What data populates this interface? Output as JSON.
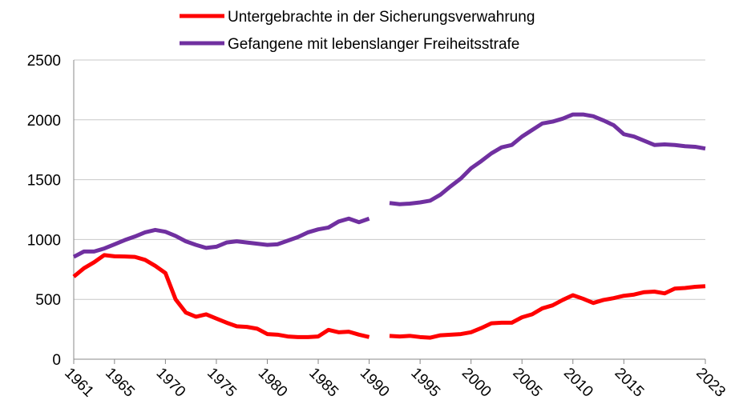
{
  "chart_data": {
    "type": "line",
    "x": [
      1961,
      1962,
      1963,
      1964,
      1965,
      1966,
      1967,
      1968,
      1969,
      1970,
      1971,
      1972,
      1973,
      1974,
      1975,
      1976,
      1977,
      1978,
      1979,
      1980,
      1981,
      1982,
      1983,
      1984,
      1985,
      1986,
      1987,
      1988,
      1989,
      1990,
      1991,
      1992,
      1993,
      1994,
      1995,
      1996,
      1997,
      1998,
      1999,
      2000,
      2001,
      2002,
      2003,
      2004,
      2005,
      2006,
      2007,
      2008,
      2009,
      2010,
      2011,
      2012,
      2013,
      2014,
      2015,
      2016,
      2017,
      2018,
      2019,
      2020,
      2021,
      2022,
      2023
    ],
    "series": [
      {
        "name": "Untergebrachte in der Sicherungsverwahrung",
        "color": "#ff0000",
        "values": [
          690,
          760,
          810,
          870,
          860,
          858,
          855,
          830,
          780,
          720,
          500,
          390,
          355,
          375,
          340,
          305,
          275,
          270,
          255,
          210,
          205,
          190,
          185,
          185,
          190,
          245,
          225,
          230,
          205,
          185,
          null,
          195,
          190,
          195,
          185,
          180,
          200,
          205,
          210,
          225,
          260,
          300,
          305,
          305,
          350,
          375,
          425,
          450,
          495,
          535,
          505,
          470,
          495,
          510,
          530,
          540,
          560,
          565,
          550,
          590,
          595,
          605,
          610
        ]
      },
      {
        "name": "Gefangene mit lebenslanger Freiheitsstrafe",
        "color": "#7030a0",
        "values": [
          855,
          900,
          900,
          925,
          960,
          995,
          1025,
          1060,
          1080,
          1065,
          1030,
          985,
          955,
          930,
          940,
          975,
          985,
          975,
          965,
          955,
          960,
          990,
          1020,
          1060,
          1085,
          1100,
          1150,
          1175,
          1145,
          1175,
          null,
          1305,
          1295,
          1300,
          1310,
          1325,
          1375,
          1445,
          1510,
          1595,
          1655,
          1720,
          1770,
          1790,
          1860,
          1915,
          1970,
          1985,
          2010,
          2045,
          2045,
          2030,
          1995,
          1955,
          1880,
          1860,
          1825,
          1790,
          1795,
          1790,
          1780,
          1775,
          1760
        ]
      }
    ],
    "xlim": [
      1961,
      2023
    ],
    "xticks": [
      1961,
      1965,
      1970,
      1975,
      1980,
      1985,
      1990,
      1995,
      2000,
      2005,
      2010,
      2015,
      2023
    ],
    "ylim": [
      0,
      2500
    ],
    "yticks": [
      0,
      500,
      1000,
      1500,
      2000,
      2500
    ],
    "grid": true,
    "legend": "top"
  }
}
